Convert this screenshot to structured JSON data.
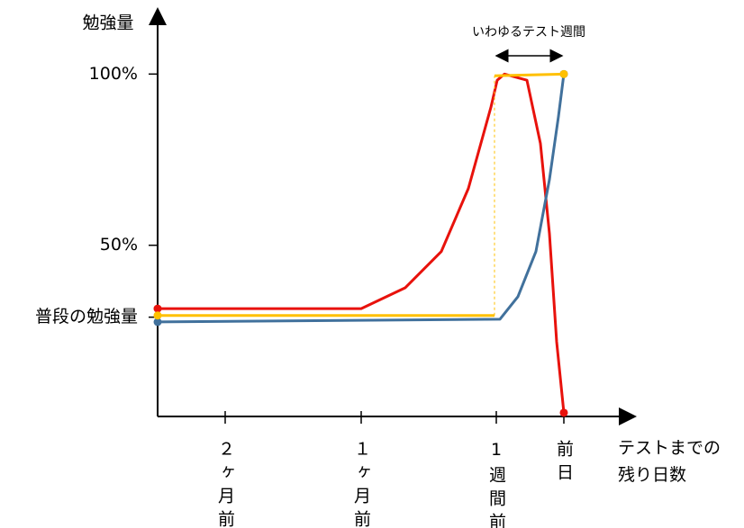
{
  "chart_data": {
    "type": "line",
    "y_label": "勉強量",
    "x_label": "テストまでの残り日数",
    "annotation": "いわゆるテスト週間",
    "xlim": [
      0,
      530
    ],
    "ylim": [
      0,
      119
    ],
    "xticks": [
      {
        "value": 75,
        "label": "２ヶ月前"
      },
      {
        "value": 226,
        "label": "１ヶ月前"
      },
      {
        "value": 376,
        "label": "1週間前"
      },
      {
        "value": 451,
        "label": "前日"
      }
    ],
    "yticks": [
      {
        "value": 29,
        "label": "普段の勉強量"
      },
      {
        "value": 50,
        "label": "50%"
      },
      {
        "value": 100,
        "label": "100%"
      }
    ],
    "series": [
      {
        "color": "#e8120c",
        "x": [
          0,
          226,
          275,
          315,
          345,
          370,
          377,
          385,
          410,
          425,
          435,
          443,
          451
        ],
        "values": [
          31.5,
          31.5,
          37.6,
          48.2,
          66.6,
          90.3,
          98.2,
          100,
          98.2,
          79.7,
          53.4,
          21.8,
          1.1
        ]
      },
      {
        "color": "#41719c",
        "x": [
          0,
          380,
          400,
          420,
          435,
          445,
          451
        ],
        "values": [
          27.6,
          28.4,
          35,
          48.2,
          69.2,
          87.6,
          100
        ]
      },
      {
        "color": "#ffc000",
        "x": [
          0,
          374,
          374,
          374,
          451
        ],
        "values": [
          29.5,
          29.5,
          null,
          99.5,
          100
        ]
      }
    ]
  }
}
